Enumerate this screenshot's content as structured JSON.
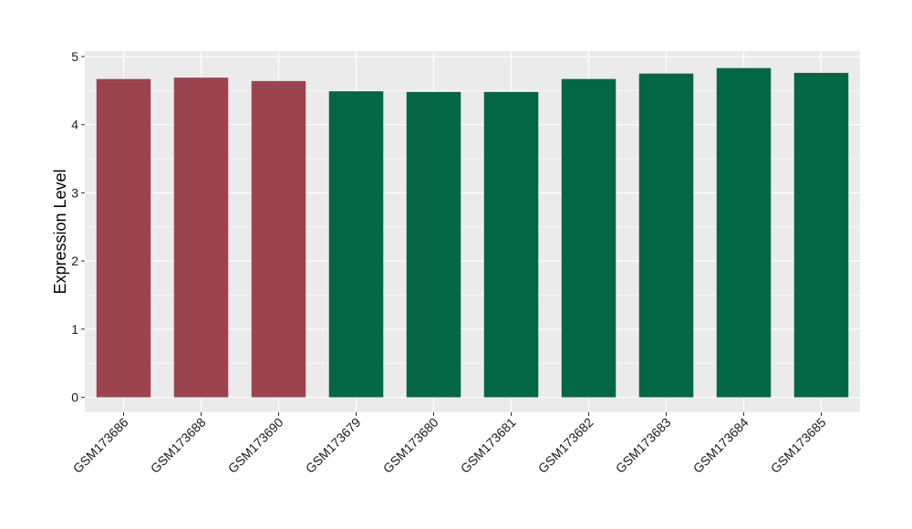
{
  "chart_data": {
    "type": "bar",
    "categories": [
      "GSM173686",
      "GSM173688",
      "GSM173690",
      "GSM173679",
      "GSM173680",
      "GSM173681",
      "GSM173682",
      "GSM173683",
      "GSM173684",
      "GSM173685"
    ],
    "values": [
      4.67,
      4.69,
      4.64,
      4.49,
      4.48,
      4.48,
      4.67,
      4.75,
      4.83,
      4.76
    ],
    "group": [
      0,
      0,
      0,
      1,
      1,
      1,
      1,
      1,
      1,
      1
    ],
    "group_colors": [
      "#9b4450",
      "#036644"
    ],
    "title": "",
    "xlabel": "",
    "ylabel": "Expression Level",
    "ylim": [
      -0.22,
      5.08
    ],
    "yticks": [
      0,
      1,
      2,
      3,
      4,
      5
    ],
    "grid": true,
    "panel_background": "#ebebeb",
    "grid_color": "#ffffff"
  }
}
